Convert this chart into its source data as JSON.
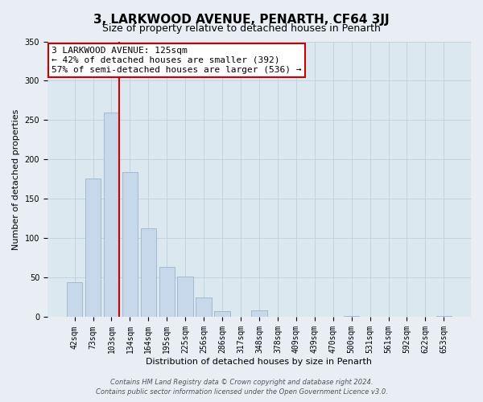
{
  "title": "3, LARKWOOD AVENUE, PENARTH, CF64 3JJ",
  "subtitle": "Size of property relative to detached houses in Penarth",
  "xlabel": "Distribution of detached houses by size in Penarth",
  "ylabel": "Number of detached properties",
  "bar_labels": [
    "42sqm",
    "73sqm",
    "103sqm",
    "134sqm",
    "164sqm",
    "195sqm",
    "225sqm",
    "256sqm",
    "286sqm",
    "317sqm",
    "348sqm",
    "378sqm",
    "409sqm",
    "439sqm",
    "470sqm",
    "500sqm",
    "531sqm",
    "561sqm",
    "592sqm",
    "622sqm",
    "653sqm"
  ],
  "bar_values": [
    44,
    176,
    260,
    184,
    113,
    64,
    51,
    25,
    8,
    0,
    9,
    0,
    0,
    0,
    0,
    2,
    0,
    0,
    0,
    0,
    2
  ],
  "bar_color": "#c8d8eb",
  "bar_edge_color": "#9ab4cc",
  "vline_x_idx": 2,
  "vline_color": "#cc0000",
  "ylim": [
    0,
    350
  ],
  "yticks": [
    0,
    50,
    100,
    150,
    200,
    250,
    300,
    350
  ],
  "annotation_title": "3 LARKWOOD AVENUE: 125sqm",
  "annotation_line1": "← 42% of detached houses are smaller (392)",
  "annotation_line2": "57% of semi-detached houses are larger (536) →",
  "annotation_box_color": "#ffffff",
  "annotation_box_edge": "#cc0000",
  "footer_line1": "Contains HM Land Registry data © Crown copyright and database right 2024.",
  "footer_line2": "Contains public sector information licensed under the Open Government Licence v3.0.",
  "background_color": "#e8eef4",
  "plot_bg_color": "#dce8f0",
  "grid_color": "#b8ccd8",
  "title_fontsize": 11,
  "subtitle_fontsize": 9,
  "axis_label_fontsize": 8,
  "tick_fontsize": 7,
  "annotation_fontsize": 8,
  "footer_fontsize": 6
}
